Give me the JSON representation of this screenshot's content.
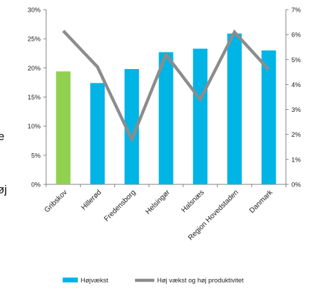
{
  "chart_data": {
    "type": "bar",
    "categories": [
      "Gribskov",
      "Hillerød",
      "Fredensborg",
      "Helsingør",
      "Halsnæs",
      "Region Hovedstaden",
      "Danmark"
    ],
    "series": [
      {
        "name": "Højvækst",
        "kind": "bar",
        "axis": "left",
        "values": [
          19.4,
          17.4,
          19.8,
          22.7,
          23.3,
          25.9,
          23.0
        ]
      },
      {
        "name": "Høj vækst og høj produktivitet",
        "kind": "line",
        "axis": "right",
        "values": [
          6.15,
          4.7,
          1.8,
          5.2,
          3.4,
          6.1,
          4.6
        ]
      }
    ],
    "ylim_left": [
      0,
      30
    ],
    "ylim_right": [
      0,
      7
    ],
    "left_ticks": [
      "0%",
      "5%",
      "10%",
      "15%",
      "20%",
      "25%",
      "30%"
    ],
    "right_ticks": [
      "0%",
      "1%",
      "2%",
      "3%",
      "4%",
      "5%",
      "6%",
      "7%"
    ],
    "grid": false,
    "legend_position": "bottom",
    "colors": {
      "bar": "#00b4e6",
      "bar_highlight": "#92d050",
      "line": "#8c8c8c",
      "axis": "#808080"
    },
    "highlight_category": "Gribskov"
  },
  "edge_text": {
    "e": "e",
    "oj": "øj"
  }
}
